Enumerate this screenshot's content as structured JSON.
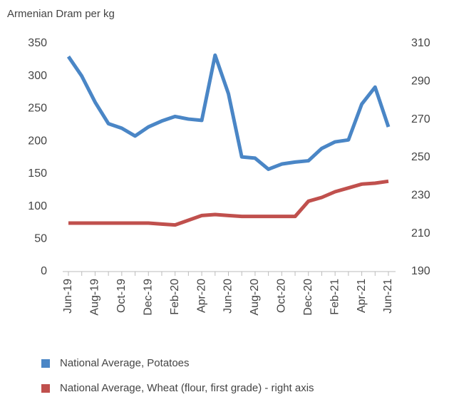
{
  "chart_data": {
    "type": "line",
    "ylabel": "Armenian Dram per kg",
    "categories": [
      "Jun-19",
      null,
      "Aug-19",
      null,
      "Oct-19",
      null,
      "Dec-19",
      null,
      "Feb-20",
      null,
      "Apr-20",
      null,
      "Jun-20",
      null,
      "Aug-20",
      null,
      "Oct-20",
      null,
      "Dec-20",
      null,
      "Feb-21",
      null,
      "Apr-21",
      null,
      "Jun-21"
    ],
    "series": [
      {
        "name": "National Average, Potatoes",
        "color": "#4a86c6",
        "axis": "y",
        "values": [
          330,
          300,
          260,
          227,
          220,
          208,
          222,
          231,
          238,
          234,
          232,
          332,
          273,
          176,
          174,
          157,
          165,
          168,
          170,
          189,
          199,
          202,
          257,
          283,
          222
        ]
      },
      {
        "name": "National Average, Wheat (flour, first grade) - right axis",
        "color": "#c0504d",
        "axis": "y2",
        "values": [
          215.5,
          215.5,
          215.5,
          215.5,
          215.5,
          215.5,
          215.5,
          215,
          214.5,
          217,
          219.5,
          220,
          219.5,
          219,
          219,
          219,
          219,
          219,
          227,
          229,
          232,
          234,
          236,
          236.5,
          237.5
        ]
      }
    ],
    "ylim": [
      0,
      350
    ],
    "yticks": [
      0,
      50,
      100,
      150,
      200,
      250,
      300,
      350
    ],
    "y2lim": [
      190,
      310
    ],
    "y2ticks": [
      190,
      210,
      230,
      250,
      270,
      290,
      310
    ],
    "legend": "bottom"
  }
}
